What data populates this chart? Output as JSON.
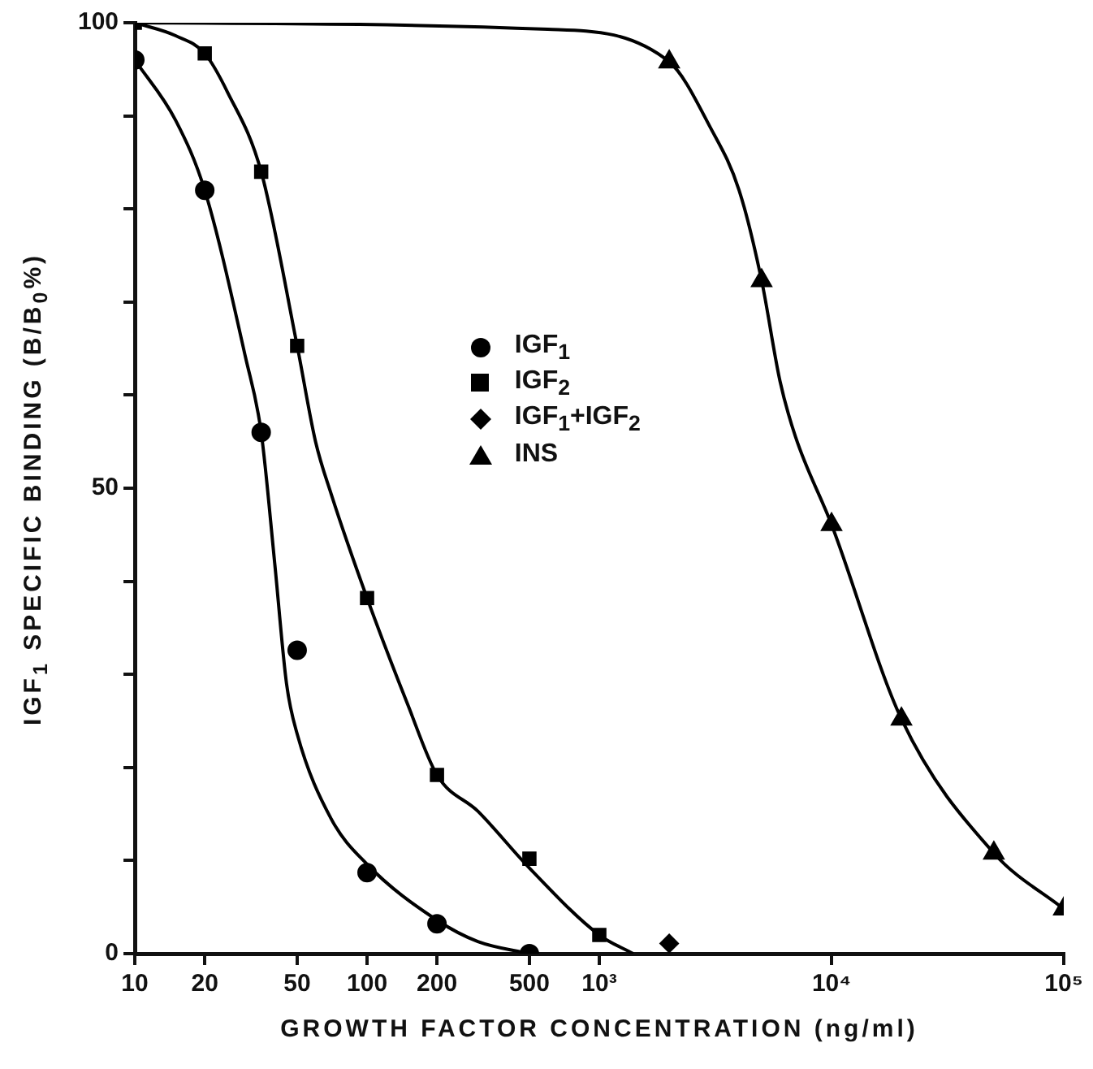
{
  "chart_data": {
    "type": "scatter",
    "xlabel": "GROWTH FACTOR CONCENTRATION (ng/ml)",
    "ylabel": "IGF$_{1}$ SPECIFIC BINDING (B/B$_{0}$%)",
    "log": "x",
    "grid": false,
    "legend": "center",
    "xlim": [
      10,
      100000
    ],
    "xticks": [
      10,
      20,
      50,
      100,
      200,
      500,
      {
        "value": 1000,
        "label": "10³"
      },
      {
        "value": 10000,
        "label": "10⁴"
      },
      {
        "value": 100000,
        "label": "10⁵"
      }
    ],
    "ylim": [
      0,
      100
    ],
    "yticks": [
      0,
      {
        "value": 10,
        "label": null
      },
      {
        "value": 20,
        "label": null
      },
      {
        "value": 30,
        "label": null
      },
      {
        "value": 40,
        "label": null
      },
      50,
      {
        "value": 60,
        "label": null
      },
      {
        "value": 70,
        "label": null
      },
      {
        "value": 80,
        "label": null
      },
      {
        "value": 90,
        "label": null
      },
      100
    ],
    "series": [
      {
        "name": "IGF$_{1}$",
        "type": "scatter",
        "marker": "circle",
        "color": "#000000",
        "x": [
          10,
          20,
          35,
          50,
          100,
          200,
          500
        ],
        "values": [
          96,
          82,
          56,
          32.6,
          8.7,
          3.2,
          0
        ]
      },
      {
        "name": "IGF$_{2}$",
        "type": "scatter",
        "marker": "square",
        "color": "#000000",
        "x": [
          10,
          20,
          35,
          50,
          100,
          200,
          500,
          1000
        ],
        "values": [
          100,
          96.7,
          84,
          65.3,
          38.2,
          19.2,
          10.2,
          2
        ]
      },
      {
        "name": "IGF$_{1}$+IGF$_{2}$",
        "type": "scatter",
        "marker": "diamond",
        "color": "#000000",
        "x": [
          2000
        ],
        "values": [
          1.1
        ]
      },
      {
        "name": "INS",
        "type": "scatter",
        "marker": "triangle",
        "color": "#000000",
        "x": [
          2000,
          5000,
          10000,
          20000,
          50000,
          100000
        ],
        "values": [
          95.8,
          72.3,
          46.1,
          25.2,
          10.8,
          4.8
        ]
      },
      {
        "type": "line",
        "marker": "none",
        "color": "#000000",
        "x": [
          10,
          15,
          20,
          30,
          35,
          40,
          45,
          50,
          70,
          100,
          200,
          300,
          500
        ],
        "values": [
          96,
          89.5,
          82,
          64,
          56,
          42,
          29,
          23.6,
          14.5,
          9.6,
          3.6,
          1.3,
          0
        ]
      },
      {
        "type": "line",
        "marker": "none",
        "color": "#000000",
        "x": [
          10,
          15,
          20,
          25,
          35,
          50,
          60,
          70,
          100,
          150,
          200,
          300,
          500,
          1000,
          1400
        ],
        "values": [
          100,
          98.6,
          96.7,
          92.6,
          84,
          65.3,
          55,
          49.4,
          38.2,
          26.7,
          19.2,
          15.3,
          9.2,
          2,
          0
        ]
      },
      {
        "type": "line",
        "marker": "none",
        "color": "#000000",
        "x": [
          10,
          600,
          2000,
          3000,
          4000,
          5000,
          6000,
          7000,
          10000,
          20000,
          50000,
          100000
        ],
        "values": [
          100,
          99.3,
          95.8,
          88.8,
          82,
          72.3,
          61.5,
          55.5,
          46.1,
          25.2,
          10.8,
          4.8
        ]
      }
    ]
  }
}
